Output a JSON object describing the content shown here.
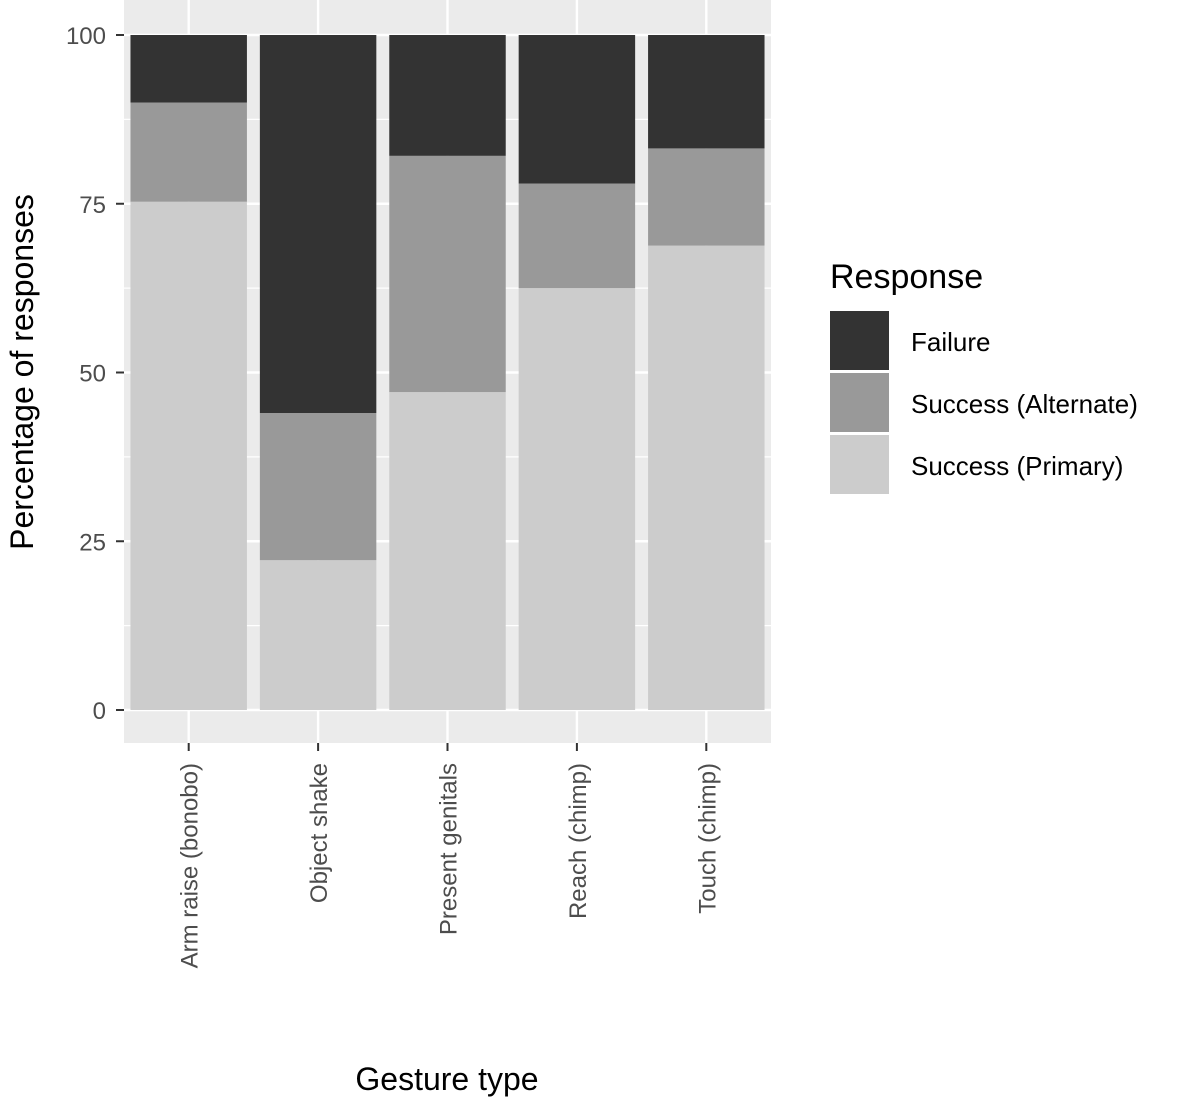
{
  "chart_data": {
    "type": "bar",
    "stacked": true,
    "percent": true,
    "categories": [
      "Arm raise (bonobo)",
      "Object shake",
      "Present genitals",
      "Reach (chimp)",
      "Touch (chimp)"
    ],
    "series": [
      {
        "name": "Success (Primary)",
        "color": "#cccccc",
        "values": [
          75.3,
          22.2,
          47.1,
          62.5,
          68.8
        ]
      },
      {
        "name": "Success (Alternate)",
        "color": "#999999",
        "values": [
          14.7,
          21.8,
          35.0,
          15.5,
          14.4
        ]
      },
      {
        "name": "Failure",
        "color": "#333333",
        "values": [
          10.0,
          56.0,
          17.9,
          22.0,
          16.8
        ]
      }
    ],
    "xlabel": "Gesture type",
    "ylabel": "Percentage of responses",
    "ylim": [
      0,
      100
    ],
    "yticks": [
      "0",
      "25",
      "50",
      "75",
      "100"
    ],
    "ytick_values": [
      0,
      25,
      50,
      75,
      100
    ],
    "grid": true,
    "panel_background": "#ebebeb",
    "grid_color": "#ffffff",
    "legend": {
      "title": "Response",
      "position": "right",
      "entries": [
        {
          "label": "Failure",
          "color": "#333333"
        },
        {
          "label": "Success (Alternate)",
          "color": "#999999"
        },
        {
          "label": "Success (Primary)",
          "color": "#cccccc"
        }
      ]
    }
  }
}
